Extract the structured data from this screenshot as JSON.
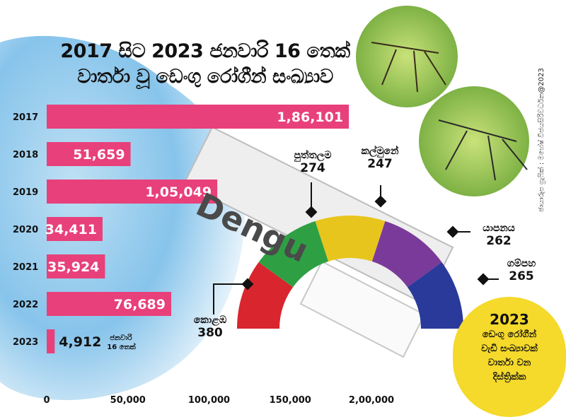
{
  "title_lines": [
    "2017 සිට 2023 ජනවාරි 16 තෙක්",
    "වාර්තා වූ ඩෙංගු රෝගීන් සංඛ්‍යාව"
  ],
  "credit": "ඡායාරූප ග්‍රැෆික් : මහේෂ් විජයසිරිවර්ධන@2023",
  "strip_word": "Dengu",
  "bar_note": [
    "ජනවාරි",
    "16 තෙක්"
  ],
  "circle_note": {
    "year": "2023",
    "lines": [
      "ඩෙංගු රෝගීන්",
      "වැඩි සංඛ්‍යාවක්",
      "වාර්තා වන",
      "දිස්ත්‍රික්ක"
    ]
  },
  "gauge_items": [
    {
      "name": "කොළඹ",
      "value": "380"
    },
    {
      "name": "පුත්තලම",
      "value": "274"
    },
    {
      "name": "කල්මුනේ",
      "value": "247"
    },
    {
      "name": "යාපනය",
      "value": "262"
    },
    {
      "name": "ගම්පහ",
      "value": "265"
    }
  ],
  "colors": {
    "bar": "#e8407a",
    "gauge": [
      "#d9252e",
      "#2ea043",
      "#e8c51c",
      "#7a3a9a",
      "#2a3a9a"
    ],
    "circle": "#f5d92b"
  },
  "chart_data": {
    "type": "bar",
    "orientation": "horizontal",
    "categories": [
      "2017",
      "2018",
      "2019",
      "2020",
      "2021",
      "2022",
      "2023"
    ],
    "values": [
      186101,
      51659,
      105049,
      34411,
      35924,
      76689,
      4912
    ],
    "value_labels": [
      "1,86,101",
      "51,659",
      "1,05,049",
      "34,411",
      "35,924",
      "76,689",
      "4,912"
    ],
    "xticks": [
      0,
      50000,
      100000,
      150000,
      200000
    ],
    "xtick_labels": [
      "0",
      "50,000",
      "100,000",
      "150,000",
      "2,00,000"
    ],
    "xlim": [
      0,
      200000
    ]
  }
}
